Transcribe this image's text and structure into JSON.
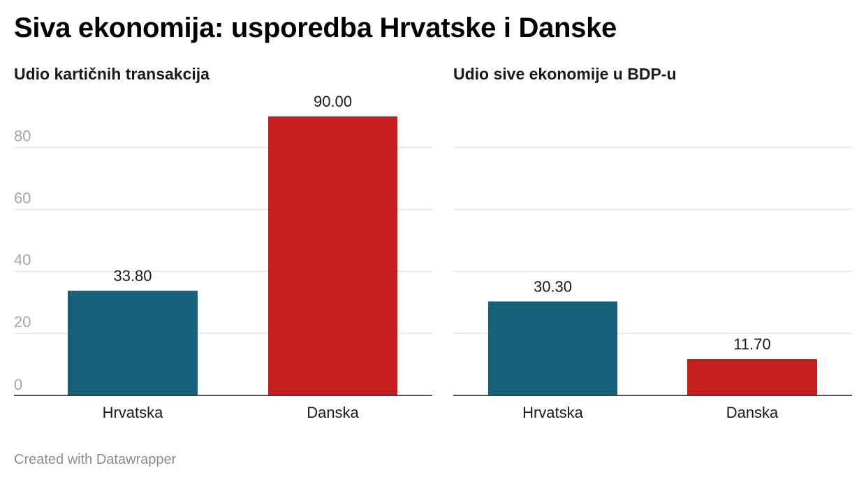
{
  "title": "Siva ekonomija: usporedba Hrvatske i Danske",
  "footer": "Created with Datawrapper",
  "colors": {
    "Hrvatska": "#17607a",
    "Danska": "#c81e1e"
  },
  "chart_data": [
    {
      "type": "bar",
      "title": "Udio kartičnih transakcija",
      "categories": [
        "Hrvatska",
        "Danska"
      ],
      "values": [
        33.8,
        90.0
      ],
      "value_labels": [
        "33.80",
        "90.00"
      ],
      "ylim": [
        0,
        90
      ],
      "yticks": [
        0,
        20,
        40,
        60,
        80
      ],
      "ytick_labels": [
        "0",
        "20",
        "40",
        "60",
        "80"
      ],
      "grid": true
    },
    {
      "type": "bar",
      "title": "Udio sive ekonomije u BDP-u",
      "categories": [
        "Hrvatska",
        "Danska"
      ],
      "values": [
        30.3,
        11.7
      ],
      "value_labels": [
        "30.30",
        "11.70"
      ],
      "ylim": [
        0,
        90
      ],
      "yticks": [
        0,
        20,
        40,
        60,
        80
      ],
      "ytick_labels": [],
      "grid": true
    }
  ]
}
